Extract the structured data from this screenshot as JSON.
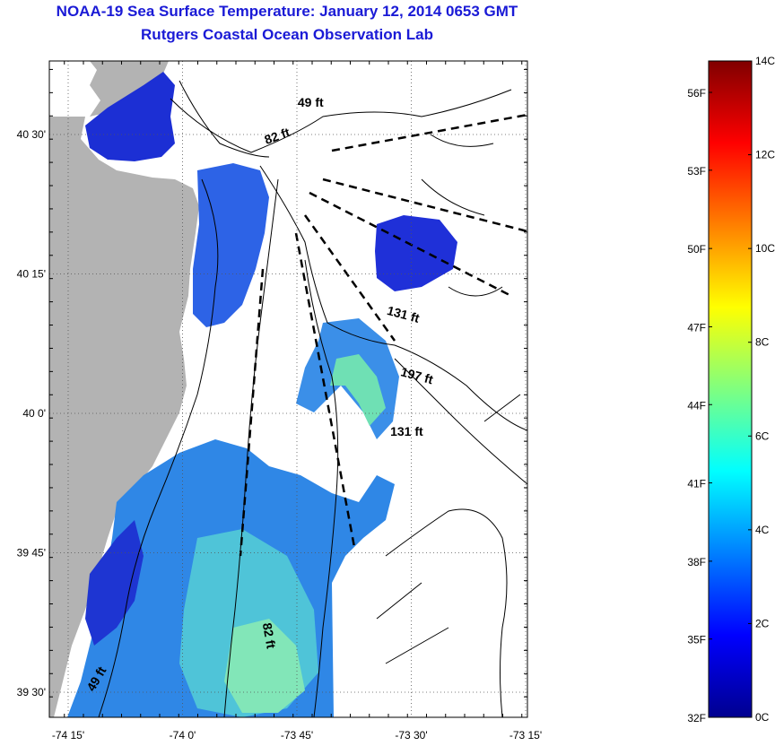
{
  "title": "NOAA-19 Sea Surface Temperature:  January 12, 2014 0653 GMT",
  "subtitle": "Rutgers Coastal Ocean Observation Lab",
  "map": {
    "lat_labels": [
      {
        "label": "40 30'",
        "lat": 40.5
      },
      {
        "label": "40 15'",
        "lat": 40.25
      },
      {
        "label": "40 0'",
        "lat": 40.0
      },
      {
        "label": "39 45'",
        "lat": 39.75
      },
      {
        "label": "39 30'",
        "lat": 39.5
      }
    ],
    "lon_labels": [
      {
        "label": "-74 15'",
        "lon": -74.25
      },
      {
        "label": "-74 0'",
        "lon": -74.0
      },
      {
        "label": "-73 45'",
        "lon": -73.75
      },
      {
        "label": "-73 30'",
        "lon": -73.5
      },
      {
        "label": "-73 15'",
        "lon": -73.25
      }
    ],
    "depth_labels": [
      {
        "text": "49 ft",
        "lon": -73.72,
        "lat": 40.55,
        "angle": 0
      },
      {
        "text": "82 ft",
        "lon": -73.79,
        "lat": 40.49,
        "angle": -20
      },
      {
        "text": "131 ft",
        "lon": -73.52,
        "lat": 40.17,
        "angle": 15
      },
      {
        "text": "197 ft",
        "lon": -73.49,
        "lat": 40.06,
        "angle": 15
      },
      {
        "text": "131 ft",
        "lon": -73.51,
        "lat": 39.96,
        "angle": 0
      },
      {
        "text": "82 ft",
        "lon": -73.82,
        "lat": 39.6,
        "angle": 80
      },
      {
        "text": "49 ft",
        "lon": -74.18,
        "lat": 39.52,
        "angle": -60
      }
    ],
    "land_color": "#b3b3b3",
    "grid": "dotted"
  },
  "colorbar": {
    "left_labels": [
      {
        "label": "56F",
        "c": 13.33
      },
      {
        "label": "53F",
        "c": 11.67
      },
      {
        "label": "50F",
        "c": 10.0
      },
      {
        "label": "47F",
        "c": 8.33
      },
      {
        "label": "44F",
        "c": 6.67
      },
      {
        "label": "41F",
        "c": 5.0
      },
      {
        "label": "38F",
        "c": 3.33
      },
      {
        "label": "35F",
        "c": 1.67
      },
      {
        "label": "32F",
        "c": 0
      }
    ],
    "right_labels": [
      {
        "label": "14C",
        "c": 14
      },
      {
        "label": "12C",
        "c": 12
      },
      {
        "label": "10C",
        "c": 10
      },
      {
        "label": "8C",
        "c": 8
      },
      {
        "label": "6C",
        "c": 6
      },
      {
        "label": "4C",
        "c": 4
      },
      {
        "label": "2C",
        "c": 2
      },
      {
        "label": "0C",
        "c": 0
      }
    ],
    "range_c": [
      0,
      14
    ],
    "colormap": "jet"
  }
}
